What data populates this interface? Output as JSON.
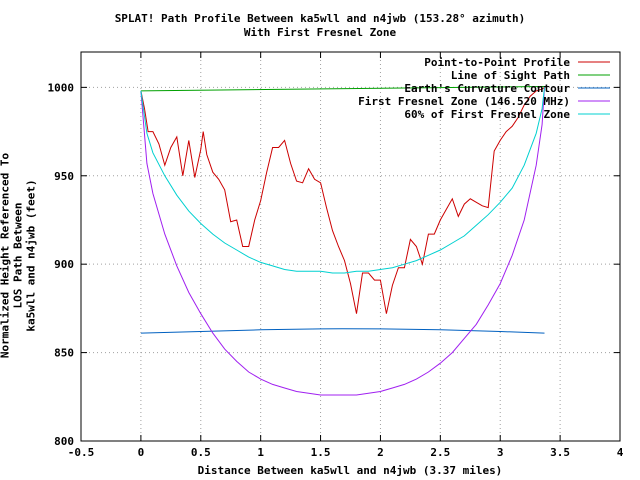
{
  "chart_data": {
    "type": "line",
    "title": "SPLAT! Path Profile Between ka5wll and n4jwb (153.28° azimuth)",
    "subtitle": "With First Fresnel Zone",
    "xlabel": "Distance Between ka5wll and n4jwb (3.37 miles)",
    "ylabel_line1": "Normalized Height Referenced To LOS Path Between",
    "ylabel_line2": "ka5wll and n4jwb (feet)",
    "xlim": [
      -0.5,
      4
    ],
    "ylim": [
      800,
      1020
    ],
    "xticks": [
      "-0.5",
      "0",
      "0.5",
      "1",
      "1.5",
      "2",
      "2.5",
      "3",
      "3.5",
      "4"
    ],
    "yticks": [
      "800",
      "850",
      "900",
      "950",
      "1000"
    ],
    "grid": true,
    "legend_position": "top-right",
    "series": [
      {
        "name": "Point-to-Point Profile",
        "color": "#cc0000",
        "x": [
          0,
          0.03,
          0.06,
          0.1,
          0.15,
          0.2,
          0.25,
          0.3,
          0.35,
          0.4,
          0.45,
          0.5,
          0.52,
          0.55,
          0.6,
          0.65,
          0.7,
          0.75,
          0.8,
          0.85,
          0.9,
          0.95,
          1.0,
          1.05,
          1.1,
          1.15,
          1.2,
          1.25,
          1.3,
          1.35,
          1.4,
          1.45,
          1.5,
          1.55,
          1.6,
          1.65,
          1.7,
          1.75,
          1.8,
          1.85,
          1.9,
          1.95,
          2.0,
          2.05,
          2.1,
          2.15,
          2.2,
          2.25,
          2.3,
          2.35,
          2.4,
          2.45,
          2.5,
          2.55,
          2.6,
          2.65,
          2.7,
          2.75,
          2.8,
          2.85,
          2.9,
          2.95,
          3.0,
          3.05,
          3.1,
          3.15,
          3.2,
          3.25,
          3.3,
          3.35,
          3.37
        ],
        "y": [
          998,
          988,
          975,
          975,
          968,
          956,
          966,
          972,
          950,
          970,
          949,
          965,
          975,
          962,
          952,
          948,
          942,
          924,
          925,
          910,
          910,
          925,
          936,
          952,
          966,
          966,
          970,
          957,
          947,
          946,
          954,
          948,
          946,
          932,
          919,
          910,
          902,
          889,
          872,
          895,
          895,
          891,
          891,
          872,
          888,
          898,
          898,
          914,
          910,
          900,
          917,
          917,
          925,
          931,
          937,
          927,
          934,
          937,
          935,
          933,
          932,
          964,
          970,
          975,
          978,
          983,
          990,
          995,
          998,
          999,
          1000
        ]
      },
      {
        "name": "Line of Sight Path",
        "color": "#00a000",
        "x": [
          0,
          3.37
        ],
        "y": [
          998,
          1000.5
        ]
      },
      {
        "name": "Earth's Curvature Contour",
        "color": "#0060c0",
        "x": [
          0,
          0.5,
          1,
          1.5,
          1.68,
          2,
          2.5,
          3,
          3.37
        ],
        "y": [
          861,
          861.9,
          862.9,
          863.4,
          863.5,
          863.4,
          862.9,
          861.9,
          861
        ]
      },
      {
        "name": "First Fresnel Zone (146.520 MHz)",
        "color": "#a020f0",
        "x": [
          0,
          0.05,
          0.1,
          0.2,
          0.3,
          0.4,
          0.5,
          0.6,
          0.7,
          0.8,
          0.9,
          1.0,
          1.1,
          1.2,
          1.3,
          1.4,
          1.5,
          1.6,
          1.7,
          1.8,
          1.9,
          2.0,
          2.1,
          2.2,
          2.3,
          2.4,
          2.5,
          2.6,
          2.7,
          2.8,
          2.9,
          3.0,
          3.1,
          3.2,
          3.3,
          3.35,
          3.37
        ],
        "y": [
          998,
          957,
          940,
          917,
          899,
          884,
          872,
          861,
          852,
          845,
          839,
          835,
          832,
          830,
          828,
          827,
          826,
          826,
          826,
          826,
          827,
          828,
          830,
          832,
          835,
          839,
          844,
          850,
          858,
          866,
          877,
          889,
          905,
          925,
          956,
          979,
          1000
        ]
      },
      {
        "name": "60% of First Fresnel Zone",
        "color": "#00d0d0",
        "x": [
          0,
          0.05,
          0.1,
          0.2,
          0.3,
          0.4,
          0.5,
          0.6,
          0.7,
          0.8,
          0.9,
          1.0,
          1.1,
          1.2,
          1.3,
          1.4,
          1.5,
          1.6,
          1.7,
          1.8,
          1.9,
          2.0,
          2.1,
          2.2,
          2.3,
          2.4,
          2.5,
          2.6,
          2.7,
          2.8,
          2.9,
          3.0,
          3.1,
          3.2,
          3.3,
          3.35,
          3.37
        ],
        "y": [
          998,
          974,
          963,
          950,
          939,
          930,
          923,
          917,
          912,
          908,
          904,
          901,
          899,
          897,
          896,
          896,
          896,
          895,
          895,
          896,
          896,
          897,
          898,
          900,
          902,
          905,
          908,
          912,
          916,
          922,
          928,
          935,
          943,
          956,
          974,
          988,
          1000
        ]
      }
    ]
  }
}
